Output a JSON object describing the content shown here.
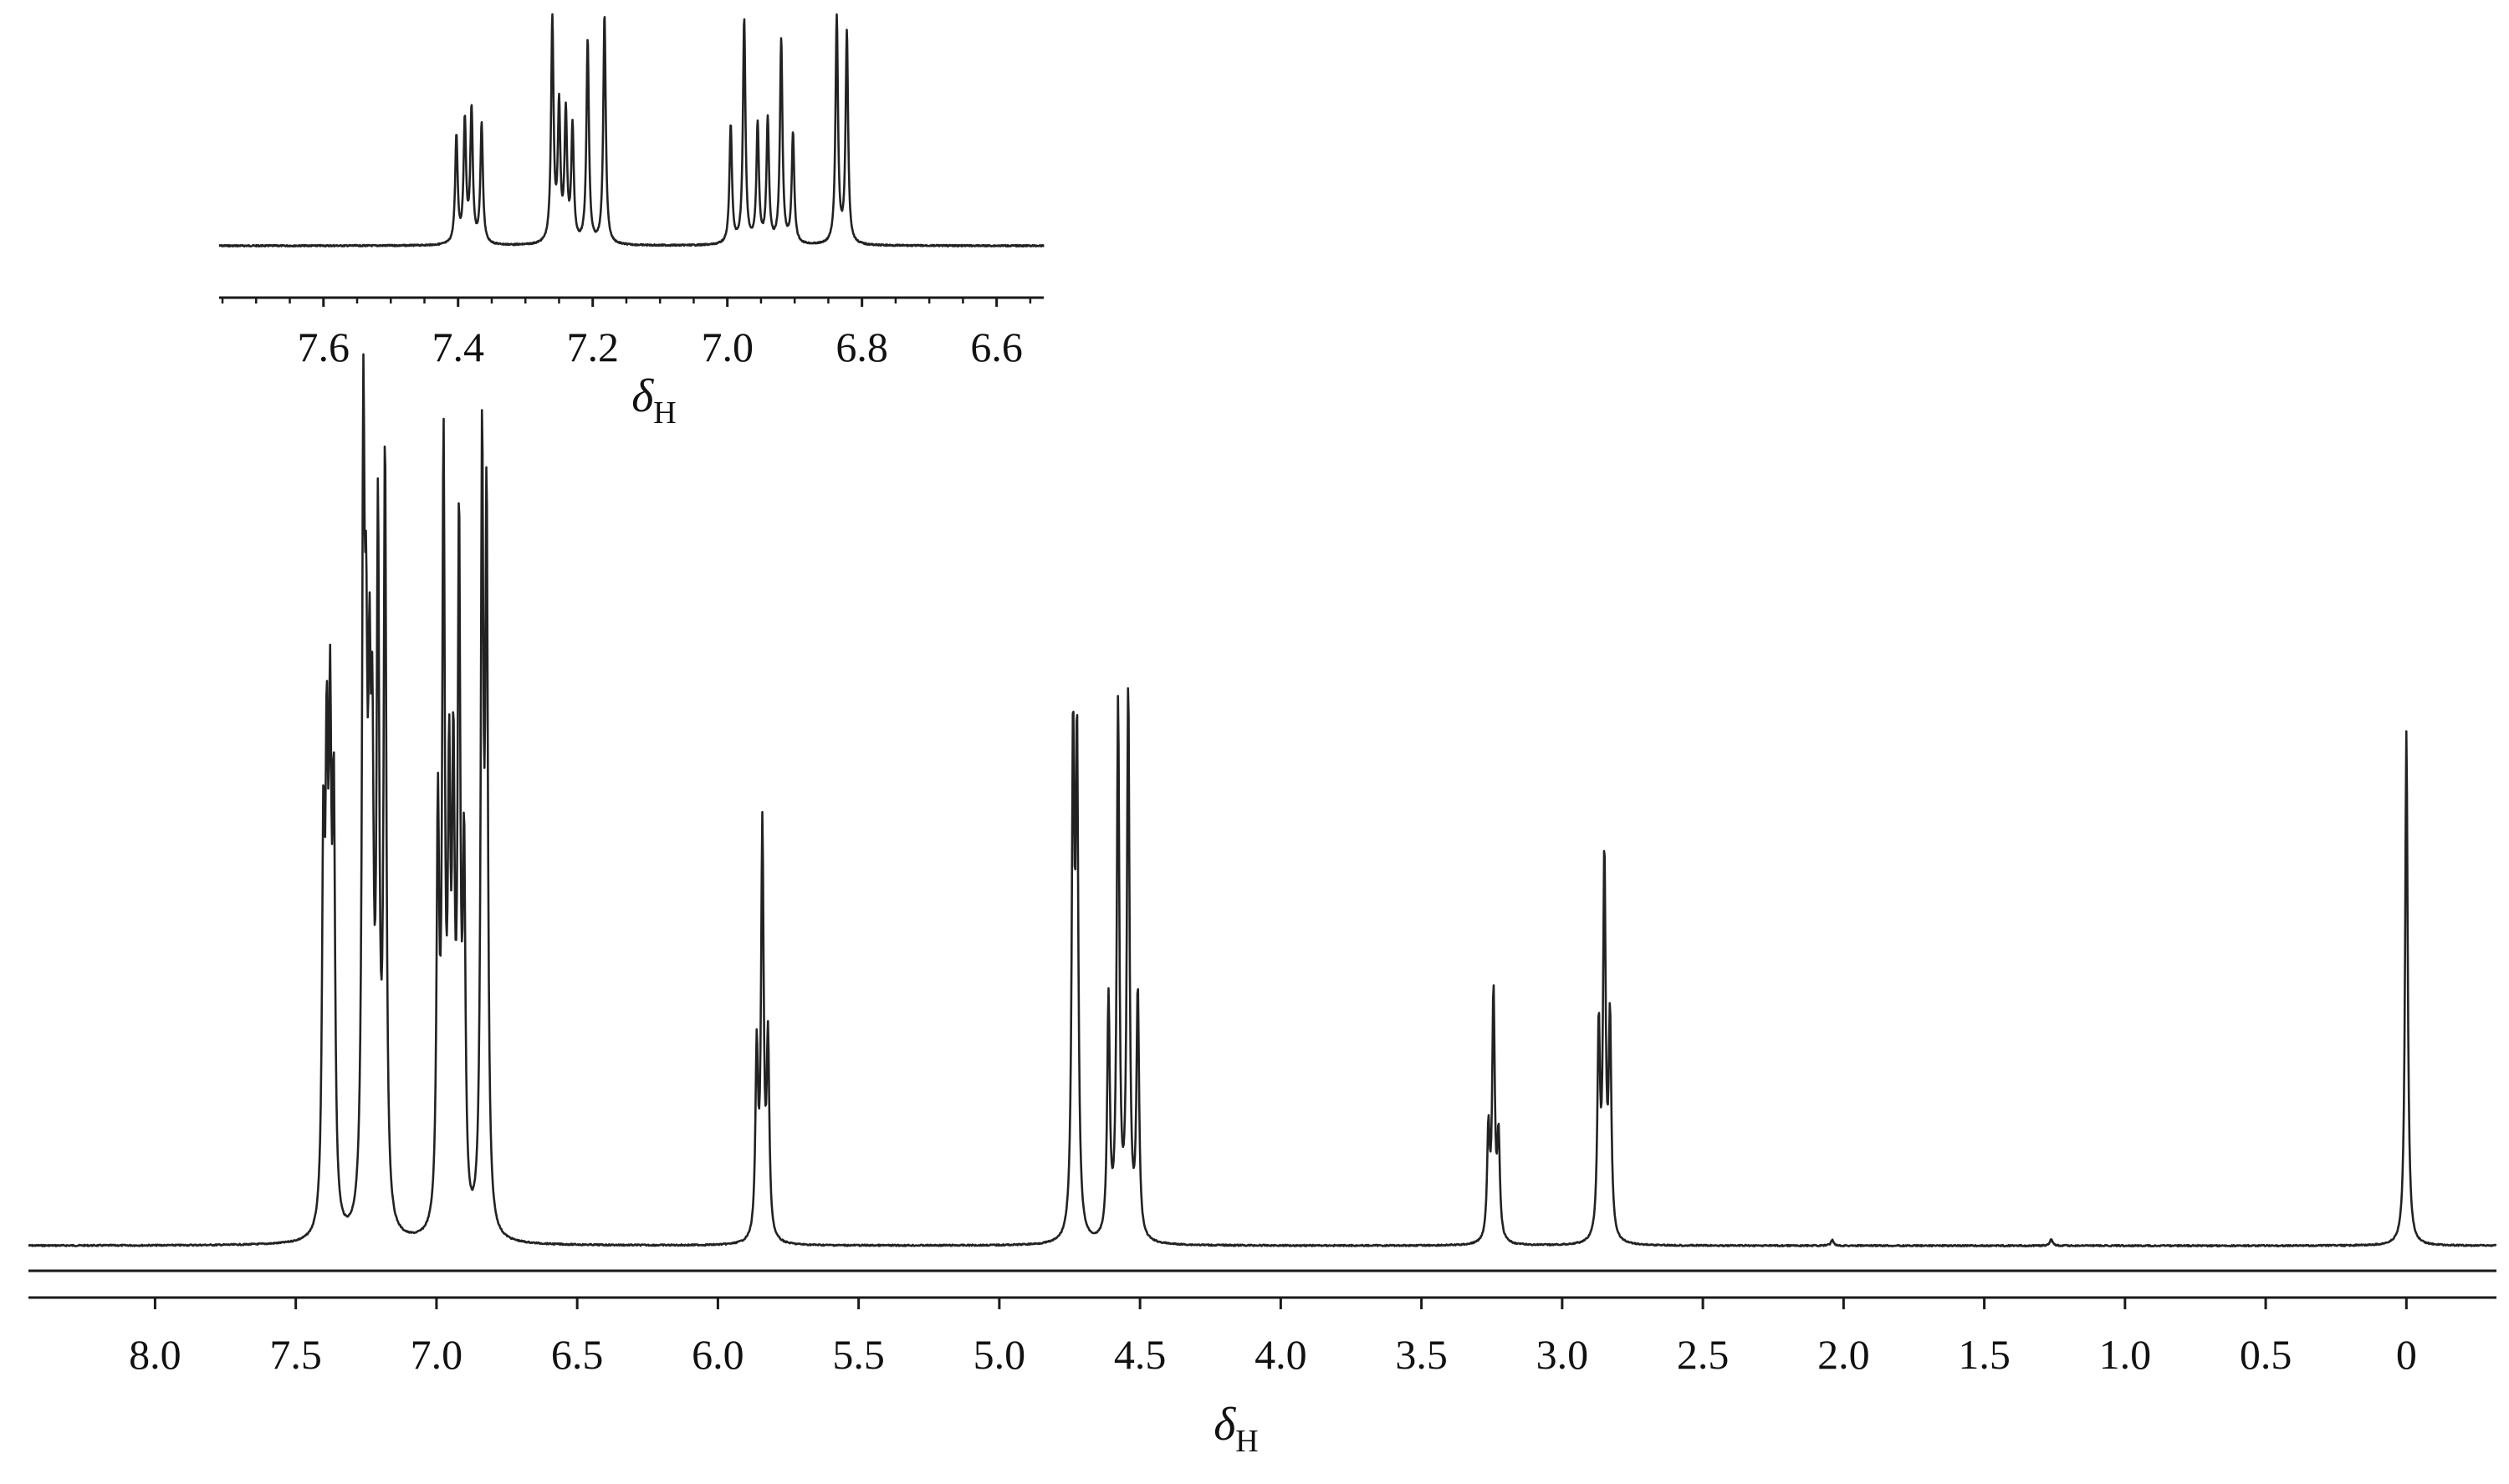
{
  "chart_data": [
    {
      "type": "line",
      "id": "inset",
      "xlabel": "δ",
      "xlabel_sub": "H",
      "xlim": [
        7.755,
        6.53
      ],
      "reversed_x": true,
      "ticks": [
        7.6,
        7.4,
        7.2,
        7.0,
        6.8,
        6.6
      ],
      "tick_labels": [
        "7.6",
        "7.4",
        "7.2",
        "7.0",
        "6.8",
        "6.6"
      ],
      "minor_step": 0.05,
      "ylim": [
        0,
        1
      ],
      "peaks": [
        {
          "shift": 7.4025,
          "height": 0.47,
          "width": 0.0022
        },
        {
          "shift": 7.39,
          "height": 0.53,
          "width": 0.0022
        },
        {
          "shift": 7.38,
          "height": 0.58,
          "width": 0.0022
        },
        {
          "shift": 7.365,
          "height": 0.52,
          "width": 0.0022
        },
        {
          "shift": 7.26,
          "height": 0.97,
          "width": 0.0022
        },
        {
          "shift": 7.25,
          "height": 0.58,
          "width": 0.0022
        },
        {
          "shift": 7.24,
          "height": 0.56,
          "width": 0.0022
        },
        {
          "shift": 7.23,
          "height": 0.5,
          "width": 0.0022
        },
        {
          "shift": 7.2075,
          "height": 0.89,
          "width": 0.0022
        },
        {
          "shift": 7.1825,
          "height": 1.0,
          "width": 0.0022
        },
        {
          "shift": 6.995,
          "height": 0.52,
          "width": 0.0022
        },
        {
          "shift": 6.975,
          "height": 0.98,
          "width": 0.0022
        },
        {
          "shift": 6.955,
          "height": 0.52,
          "width": 0.0022
        },
        {
          "shift": 6.94,
          "height": 0.54,
          "width": 0.0022
        },
        {
          "shift": 6.92,
          "height": 0.89,
          "width": 0.0022
        },
        {
          "shift": 6.9025,
          "height": 0.48,
          "width": 0.0022
        },
        {
          "shift": 6.8375,
          "height": 0.99,
          "width": 0.0022
        },
        {
          "shift": 6.8225,
          "height": 0.92,
          "width": 0.0022
        }
      ]
    },
    {
      "type": "line",
      "id": "main",
      "xlabel": "δ",
      "xlabel_sub": "H",
      "xlim": [
        8.45,
        -0.32
      ],
      "reversed_x": true,
      "ticks": [
        8.0,
        7.5,
        7.0,
        6.5,
        6.0,
        5.5,
        5.0,
        4.5,
        4.0,
        3.5,
        3.0,
        2.5,
        2.0,
        1.5,
        1.0,
        0.5,
        0
      ],
      "tick_labels": [
        "8.0",
        "7.5",
        "7.0",
        "6.5",
        "6.0",
        "5.5",
        "5.0",
        "4.5",
        "4.0",
        "3.5",
        "3.0",
        "2.5",
        "2.0",
        "1.5",
        "1.0",
        "0.5",
        "0"
      ],
      "ylim": [
        0,
        1
      ],
      "peaks": [
        {
          "shift": 7.402,
          "height": 0.47,
          "width": 0.0055
        },
        {
          "shift": 7.39,
          "height": 0.53,
          "width": 0.0055
        },
        {
          "shift": 7.378,
          "height": 0.58,
          "width": 0.0055
        },
        {
          "shift": 7.365,
          "height": 0.52,
          "width": 0.0055
        },
        {
          "shift": 7.26,
          "height": 0.96,
          "width": 0.0055
        },
        {
          "shift": 7.25,
          "height": 0.55,
          "width": 0.0055
        },
        {
          "shift": 7.238,
          "height": 0.54,
          "width": 0.0055
        },
        {
          "shift": 7.228,
          "height": 0.5,
          "width": 0.0055
        },
        {
          "shift": 7.208,
          "height": 0.88,
          "width": 0.0055
        },
        {
          "shift": 7.183,
          "height": 1.0,
          "width": 0.0055
        },
        {
          "shift": 6.995,
          "height": 0.52,
          "width": 0.0055
        },
        {
          "shift": 6.975,
          "height": 0.98,
          "width": 0.0055
        },
        {
          "shift": 6.955,
          "height": 0.52,
          "width": 0.0055
        },
        {
          "shift": 6.94,
          "height": 0.54,
          "width": 0.0055
        },
        {
          "shift": 6.92,
          "height": 0.88,
          "width": 0.0055
        },
        {
          "shift": 6.902,
          "height": 0.46,
          "width": 0.0055
        },
        {
          "shift": 6.838,
          "height": 0.99,
          "width": 0.0055
        },
        {
          "shift": 6.822,
          "height": 0.91,
          "width": 0.0055
        },
        {
          "shift": 5.862,
          "height": 0.24,
          "width": 0.0055
        },
        {
          "shift": 5.842,
          "height": 0.53,
          "width": 0.0055
        },
        {
          "shift": 5.822,
          "height": 0.25,
          "width": 0.0055
        },
        {
          "shift": 4.738,
          "height": 0.63,
          "width": 0.0055
        },
        {
          "shift": 4.724,
          "height": 0.62,
          "width": 0.0055
        },
        {
          "shift": 4.612,
          "height": 0.31,
          "width": 0.0055
        },
        {
          "shift": 4.578,
          "height": 0.69,
          "width": 0.0055
        },
        {
          "shift": 4.542,
          "height": 0.71,
          "width": 0.0055
        },
        {
          "shift": 4.508,
          "height": 0.32,
          "width": 0.0055
        },
        {
          "shift": 3.262,
          "height": 0.14,
          "width": 0.0055
        },
        {
          "shift": 3.244,
          "height": 0.32,
          "width": 0.0055
        },
        {
          "shift": 3.226,
          "height": 0.13,
          "width": 0.0055
        },
        {
          "shift": 2.87,
          "height": 0.27,
          "width": 0.0055
        },
        {
          "shift": 2.85,
          "height": 0.49,
          "width": 0.0055
        },
        {
          "shift": 2.83,
          "height": 0.28,
          "width": 0.0055
        },
        {
          "shift": 2.04,
          "height": 0.008,
          "width": 0.0055
        },
        {
          "shift": 1.262,
          "height": 0.009,
          "width": 0.0055
        },
        {
          "shift": 0.0,
          "height": 0.67,
          "width": 0.0055
        }
      ]
    }
  ]
}
